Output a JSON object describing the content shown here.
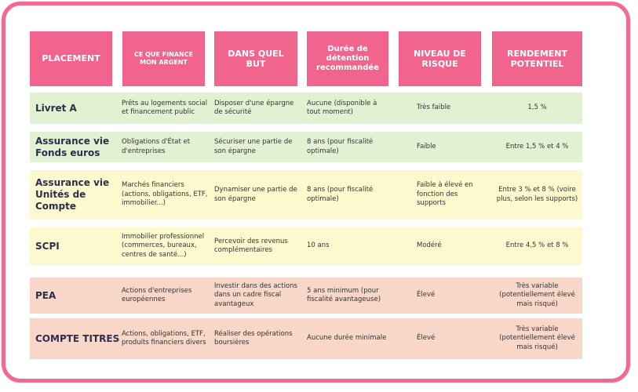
{
  "headers": {
    "placement": "PLACEMENT",
    "finance": "CE QUE FINANCE MON ARGENT",
    "but": "DANS QUEL BUT",
    "duree": "Durée de détention recommandée",
    "risque": "NIVEAU DE RISQUE",
    "rendement": "RENDEMENT POTENTIEL"
  },
  "rows": [
    {
      "title": "Livret A",
      "finance": "Prêts au logements social et financement public",
      "but": "Disposer d'une épargne de sécurité",
      "duree": "Aucune (disponible à tout moment)",
      "risque": "Très faible",
      "rendement": "1,5 %"
    },
    {
      "title": "Assurance vie Fonds euros",
      "finance": "Obligations d'État et d'entreprises",
      "but": "Sécuriser une partie de son épargne",
      "duree": "8 ans (pour fiscalité optimale)",
      "risque": "Faible",
      "rendement": "Entre 1,5 % et 4 %"
    },
    {
      "title": "Assurance vie Unités de Compte",
      "finance": "Marchés financiers (actions, obligations, ETF, immobilier...)",
      "but": "Dynamiser une partie de son épargne",
      "duree": "8 ans (pour fiscalité optimale)",
      "risque": "Faible à élevé en fonction des supports",
      "rendement": "Entre 3 % et 8 % (voire plus, selon les supports)"
    },
    {
      "title": "SCPI",
      "finance": "Immobilier professionnel (commerces, bureaux, centres de santé...)",
      "but": "Percevoir des revenus complémentaires",
      "duree": "10 ans",
      "risque": "Modéré",
      "rendement": "Entre 4,5 % et 8 %"
    },
    {
      "title": "PEA",
      "finance": "Actions d'entreprises européennes",
      "but": "Investir dans des actions dans un cadre fiscal avantageux",
      "duree": "5 ans minimum (pour fiscalité avantageuse)",
      "risque": "Élevé",
      "rendement": "Très variable (potentiellement élevé mais risqué)"
    },
    {
      "title": "COMPTE TITRES",
      "finance": "Actions, obligations, ETF, produits financiers divers",
      "but": "Réaliser des opérations boursières",
      "duree": "Aucune durée minimale",
      "risque": "Élevé",
      "rendement": "Très variable (potentiellement élevé mais risqué)"
    }
  ],
  "colors": {
    "header": "#f0648e",
    "frame": "#f06a91",
    "green": "#e2f1d2",
    "yellow": "#fdf9cf",
    "orange": "#f8d6c8"
  }
}
